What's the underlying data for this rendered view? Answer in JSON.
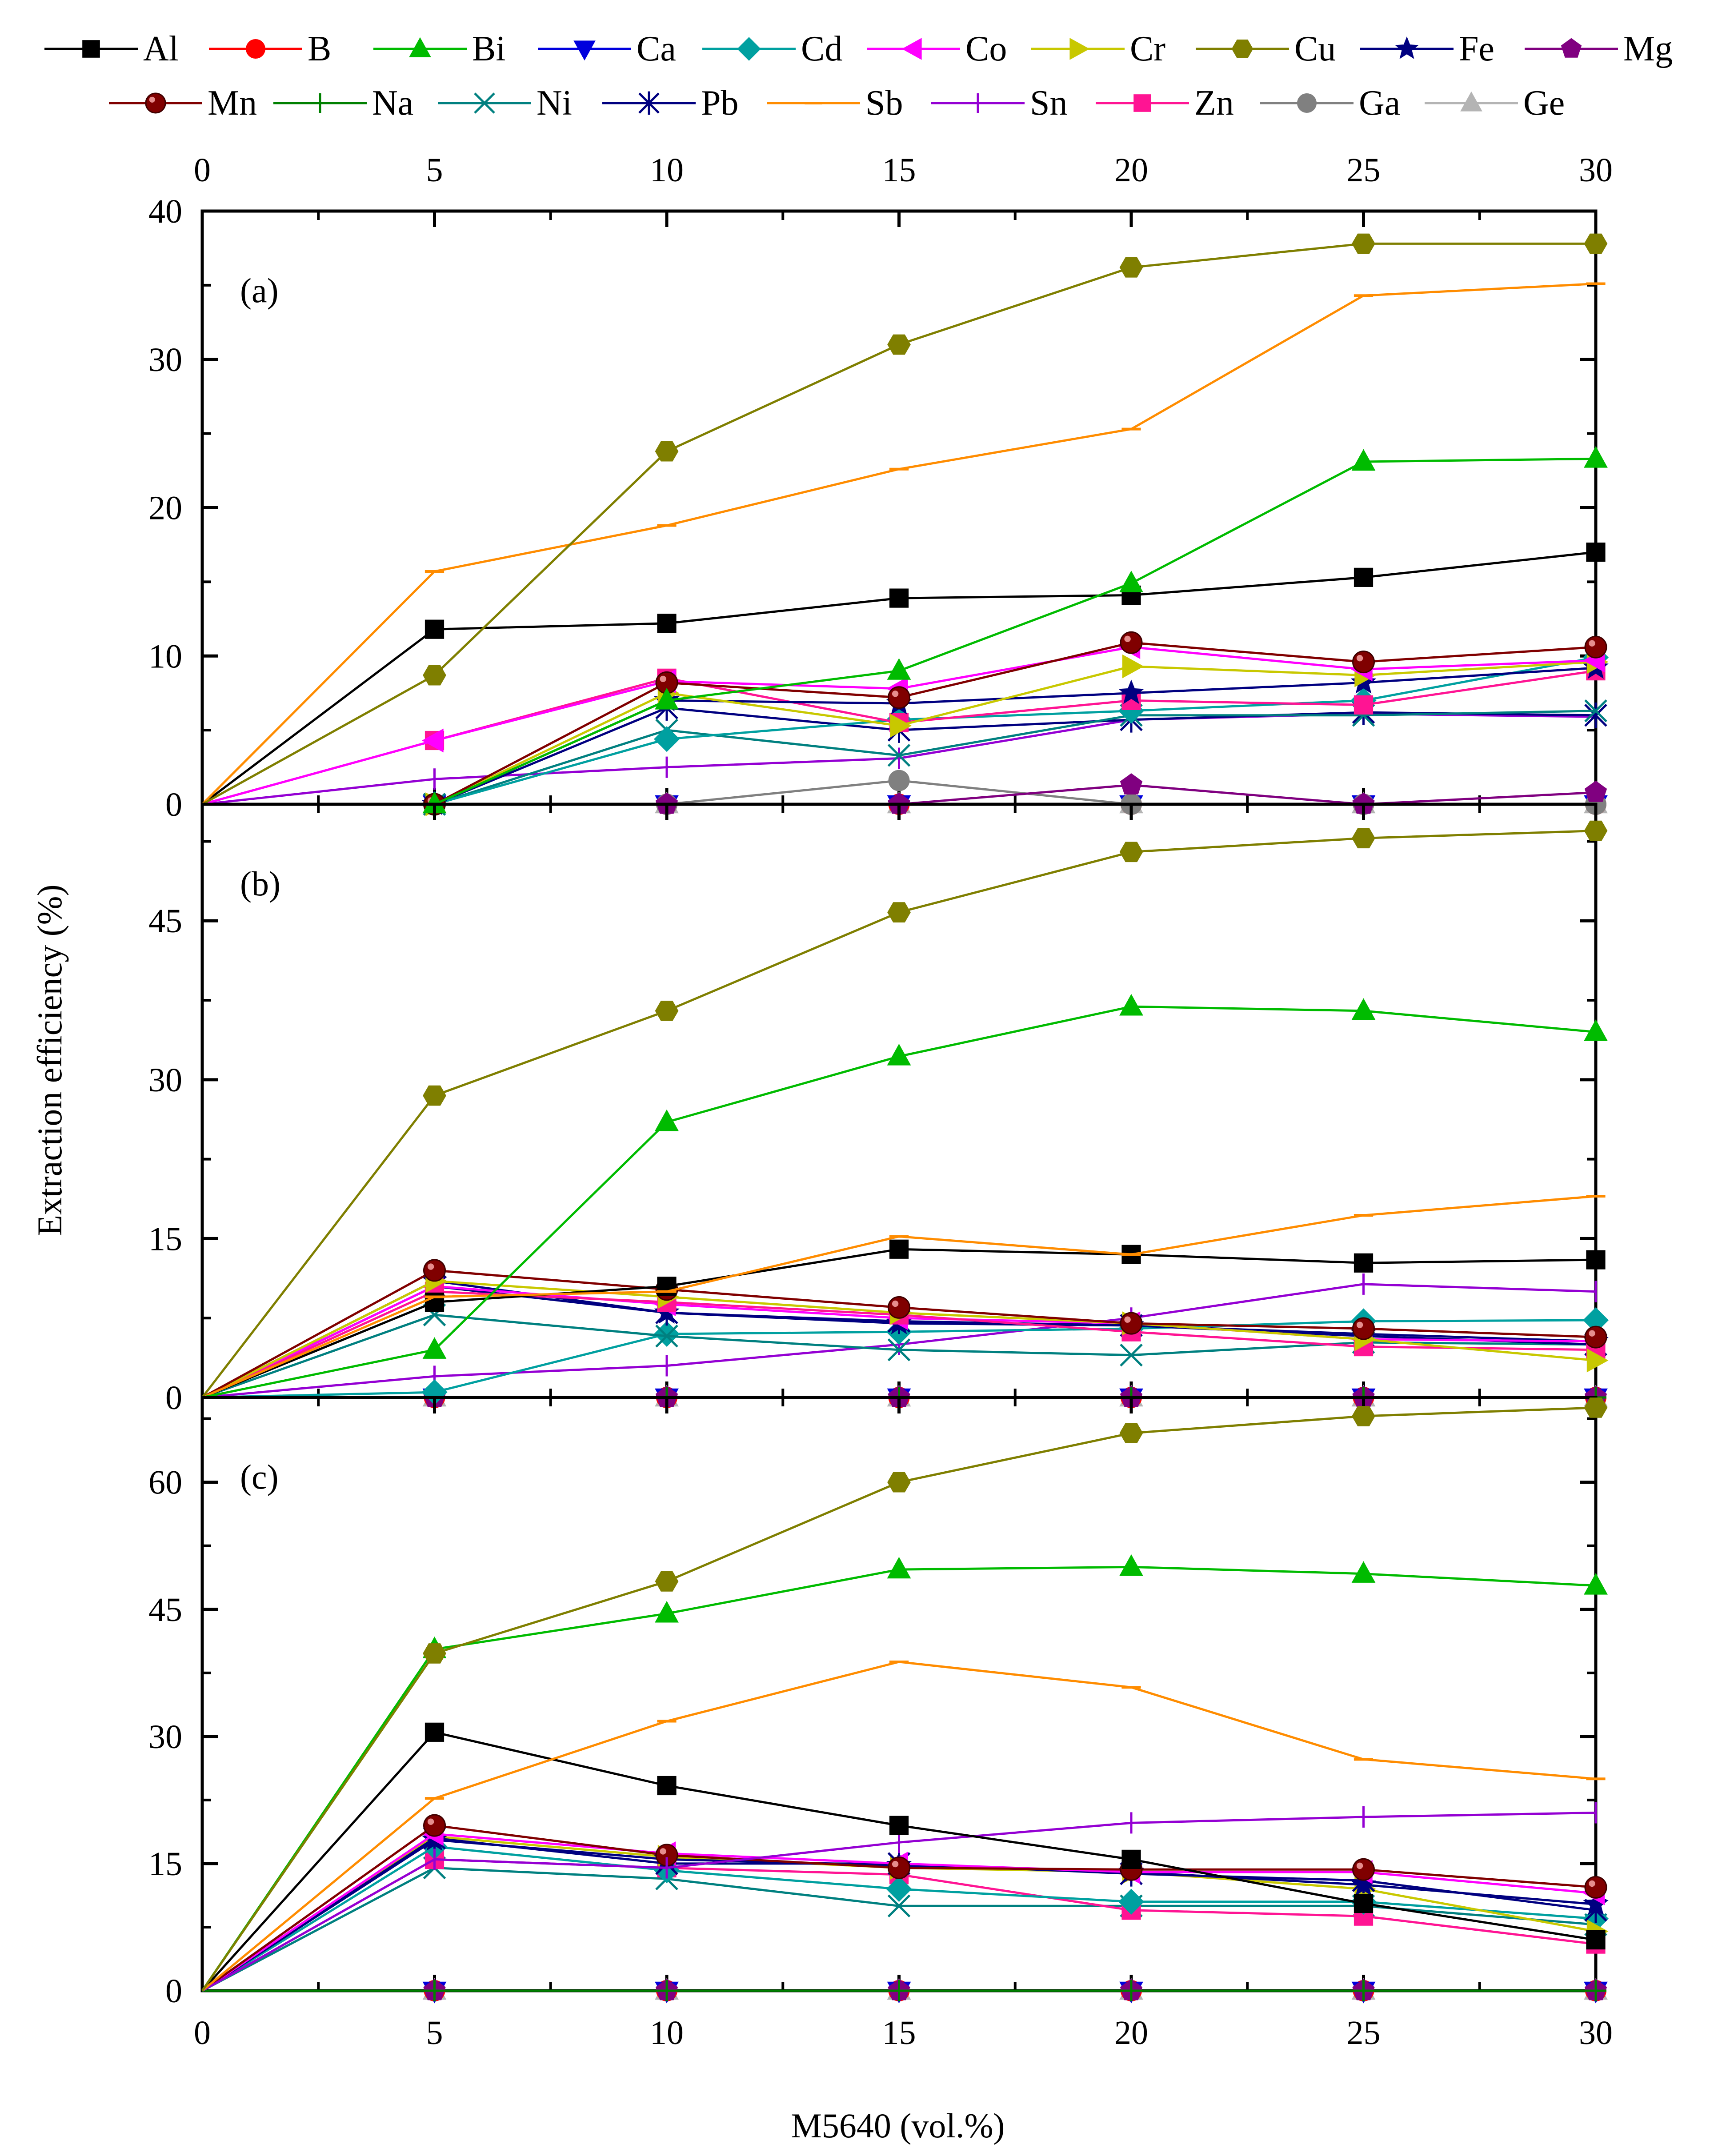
{
  "chart_data": {
    "type": "line",
    "xlabel": "M5640 (vol.%)",
    "ylabel": "Extraction efficiency (%)",
    "x": [
      0,
      5,
      10,
      15,
      20,
      25,
      30
    ],
    "xlim": [
      0,
      30
    ],
    "x_ticks": [
      0,
      5,
      10,
      15,
      20,
      25,
      30
    ],
    "legend": [
      {
        "name": "Al",
        "color": "#000000",
        "marker": "square"
      },
      {
        "name": "B",
        "color": "#ff0000",
        "marker": "circle"
      },
      {
        "name": "Bi",
        "color": "#00bb00",
        "marker": "triangle-up"
      },
      {
        "name": "Ca",
        "color": "#0000dd",
        "marker": "triangle-down"
      },
      {
        "name": "Cd",
        "color": "#00a0a0",
        "marker": "diamond"
      },
      {
        "name": "Co",
        "color": "#ff00ff",
        "marker": "triangle-left"
      },
      {
        "name": "Cr",
        "color": "#c8c800",
        "marker": "triangle-right"
      },
      {
        "name": "Cu",
        "color": "#7f7f00",
        "marker": "hexagon"
      },
      {
        "name": "Fe",
        "color": "#000080",
        "marker": "star"
      },
      {
        "name": "Mg",
        "color": "#800080",
        "marker": "pentagon"
      },
      {
        "name": "Mn",
        "color": "#800000",
        "marker": "sphere"
      },
      {
        "name": "Na",
        "color": "#008000",
        "marker": "plus"
      },
      {
        "name": "Ni",
        "color": "#008080",
        "marker": "x"
      },
      {
        "name": "Pb",
        "color": "#000080",
        "marker": "asterisk"
      },
      {
        "name": "Sb",
        "color": "#ff8c00",
        "marker": "dash"
      },
      {
        "name": "Sn",
        "color": "#9400d3",
        "marker": "vbar"
      },
      {
        "name": "Zn",
        "color": "#ff1493",
        "marker": "square"
      },
      {
        "name": "Ga",
        "color": "#808080",
        "marker": "circle"
      },
      {
        "name": "Ge",
        "color": "#b4b4b4",
        "marker": "triangle-up"
      }
    ],
    "panels": [
      {
        "label": "(a)",
        "ylim": [
          0,
          40
        ],
        "y_ticks": [
          0,
          10,
          20,
          30,
          40
        ],
        "series": [
          {
            "name": "Cu",
            "values": [
              0,
              8.7,
              23.8,
              31.0,
              36.2,
              37.8,
              37.8
            ]
          },
          {
            "name": "Sb",
            "values": [
              0,
              15.7,
              18.8,
              22.6,
              25.3,
              34.3,
              35.1
            ]
          },
          {
            "name": "Bi",
            "values": [
              0,
              0,
              7.0,
              9.0,
              14.9,
              23.1,
              23.3
            ]
          },
          {
            "name": "Al",
            "values": [
              0,
              11.8,
              12.2,
              13.9,
              14.1,
              15.3,
              17.0
            ]
          },
          {
            "name": "Mn",
            "values": [
              0,
              0,
              8.2,
              7.2,
              10.9,
              9.6,
              10.6
            ]
          },
          {
            "name": "Co",
            "values": [
              0,
              4.3,
              8.3,
              7.8,
              10.6,
              9.1,
              9.7
            ]
          },
          {
            "name": "Cr",
            "values": [
              0,
              0,
              7.5,
              5.3,
              9.3,
              8.7,
              9.6
            ]
          },
          {
            "name": "Fe",
            "values": [
              0,
              0,
              7.0,
              6.8,
              7.5,
              8.2,
              9.2
            ]
          },
          {
            "name": "Zn",
            "values": [
              0,
              4.3,
              8.5,
              5.5,
              7.0,
              6.7,
              9.0
            ]
          },
          {
            "name": "Cd",
            "values": [
              0,
              0,
              4.4,
              5.7,
              6.3,
              7.0,
              9.9
            ]
          },
          {
            "name": "Ni",
            "values": [
              0,
              0,
              5.0,
              3.3,
              6.0,
              6.0,
              6.3
            ]
          },
          {
            "name": "Pb",
            "values": [
              0,
              0,
              6.5,
              5.0,
              5.7,
              6.2,
              6.0
            ]
          },
          {
            "name": "Sn",
            "values": [
              0,
              1.7,
              2.5,
              3.1,
              5.7,
              6.1,
              5.9
            ]
          },
          {
            "name": "Mg",
            "values": [
              0,
              0,
              0,
              0,
              1.3,
              0,
              0.8
            ]
          },
          {
            "name": "Ga",
            "values": [
              0,
              0,
              0,
              1.6,
              0,
              0,
              0
            ]
          },
          {
            "name": "Na",
            "values": [
              0,
              0,
              0,
              0,
              0,
              0,
              0
            ]
          },
          {
            "name": "Ca",
            "values": [
              0,
              0,
              0,
              0,
              0,
              0,
              0
            ]
          },
          {
            "name": "B",
            "values": [
              0,
              0,
              0,
              0,
              0,
              0,
              0
            ]
          },
          {
            "name": "Ge",
            "values": [
              0,
              0,
              0,
              0,
              0,
              0,
              0
            ]
          }
        ]
      },
      {
        "label": "(b)",
        "ylim": [
          0,
          56
        ],
        "y_ticks": [
          0,
          15,
          30,
          45
        ],
        "series": [
          {
            "name": "Cu",
            "values": [
              0,
              28.5,
              36.5,
              45.8,
              51.5,
              52.8,
              53.5
            ]
          },
          {
            "name": "Bi",
            "values": [
              0,
              4.5,
              26.0,
              32.2,
              36.9,
              36.5,
              34.5
            ]
          },
          {
            "name": "Sb",
            "values": [
              0,
              9.5,
              10.0,
              15.2,
              13.5,
              17.2,
              19.0
            ]
          },
          {
            "name": "Al",
            "values": [
              0,
              9.0,
              10.5,
              14.0,
              13.5,
              12.7,
              13.0
            ]
          },
          {
            "name": "Mn",
            "values": [
              0,
              12.0,
              10.2,
              8.5,
              7.0,
              6.5,
              5.7
            ]
          },
          {
            "name": "Cr",
            "values": [
              0,
              11.0,
              9.5,
              8.0,
              7.0,
              5.5,
              3.5
            ]
          },
          {
            "name": "Zn",
            "values": [
              0,
              10.0,
              9.0,
              7.8,
              6.2,
              4.8,
              4.5
            ]
          },
          {
            "name": "Co",
            "values": [
              0,
              10.5,
              8.8,
              7.5,
              7.0,
              5.5,
              5.3
            ]
          },
          {
            "name": "Fe",
            "values": [
              0,
              11.0,
              8.0,
              7.0,
              6.8,
              6.0,
              5.3
            ]
          },
          {
            "name": "Pb",
            "values": [
              0,
              10.5,
              8.0,
              7.2,
              6.8,
              5.8,
              5.0
            ]
          },
          {
            "name": "Ni",
            "values": [
              0,
              7.8,
              5.8,
              4.5,
              4.0,
              5.2,
              5.0
            ]
          },
          {
            "name": "Cd",
            "values": [
              0,
              0.5,
              6.0,
              6.2,
              6.5,
              7.2,
              7.3
            ]
          },
          {
            "name": "Sn",
            "values": [
              0,
              2.0,
              3.0,
              5.0,
              7.5,
              10.7,
              10.0
            ]
          },
          {
            "name": "Na",
            "values": [
              0,
              0,
              0,
              0,
              0,
              0,
              0
            ]
          },
          {
            "name": "Mg",
            "values": [
              0,
              0,
              0,
              0,
              0,
              0,
              0
            ]
          },
          {
            "name": "Ca",
            "values": [
              0,
              0,
              0,
              0,
              0,
              0,
              0
            ]
          },
          {
            "name": "B",
            "values": [
              0,
              0,
              0,
              0,
              0,
              0,
              0
            ]
          },
          {
            "name": "Ga",
            "values": [
              0,
              0,
              0,
              0,
              0,
              0,
              0
            ]
          },
          {
            "name": "Ge",
            "values": [
              0,
              0,
              0,
              0,
              0,
              0,
              0
            ]
          }
        ]
      },
      {
        "label": "(c)",
        "ylim": [
          0,
          70
        ],
        "y_ticks": [
          0,
          15,
          30,
          45,
          60
        ],
        "series": [
          {
            "name": "Cu",
            "values": [
              0,
              39.8,
              48.3,
              60.0,
              65.8,
              67.8,
              68.8
            ]
          },
          {
            "name": "Bi",
            "values": [
              0,
              40.3,
              44.5,
              49.7,
              50.0,
              49.2,
              47.8
            ]
          },
          {
            "name": "Sb",
            "values": [
              0,
              22.7,
              31.8,
              38.8,
              35.8,
              27.3,
              25.0
            ]
          },
          {
            "name": "Al",
            "values": [
              0,
              30.5,
              24.2,
              19.5,
              15.5,
              10.3,
              6.0
            ]
          },
          {
            "name": "Sn",
            "values": [
              0,
              15.5,
              14.5,
              17.5,
              19.8,
              20.5,
              21.0
            ]
          },
          {
            "name": "Mn",
            "values": [
              0,
              19.5,
              16.0,
              14.5,
              14.3,
              14.3,
              12.2
            ]
          },
          {
            "name": "Co",
            "values": [
              0,
              18.5,
              16.2,
              15.0,
              14.0,
              14.0,
              11.5
            ]
          },
          {
            "name": "Fe",
            "values": [
              0,
              17.8,
              15.5,
              14.8,
              14.0,
              12.5,
              10.2
            ]
          },
          {
            "name": "Pb",
            "values": [
              0,
              18.0,
              15.0,
              15.0,
              13.8,
              13.0,
              9.5
            ]
          },
          {
            "name": "Cr",
            "values": [
              0,
              18.2,
              15.8,
              14.5,
              14.0,
              12.0,
              7.0
            ]
          },
          {
            "name": "Cd",
            "values": [
              0,
              17.0,
              14.2,
              12.0,
              10.5,
              10.5,
              8.5
            ]
          },
          {
            "name": "Zn",
            "values": [
              0,
              15.5,
              14.5,
              13.7,
              9.5,
              8.8,
              5.5
            ]
          },
          {
            "name": "Ni",
            "values": [
              0,
              14.5,
              13.2,
              10.0,
              10.0,
              10.0,
              7.8
            ]
          },
          {
            "name": "Na",
            "values": [
              0,
              0,
              0,
              0,
              0,
              0,
              0
            ]
          },
          {
            "name": "Mg",
            "values": [
              0,
              0,
              0,
              0,
              0,
              0,
              0
            ]
          },
          {
            "name": "Ca",
            "values": [
              0,
              0,
              0,
              0,
              0,
              0,
              0
            ]
          },
          {
            "name": "B",
            "values": [
              0,
              0,
              0,
              0,
              0,
              0,
              0
            ]
          },
          {
            "name": "Ga",
            "values": [
              0,
              0,
              0,
              0,
              0,
              0,
              0
            ]
          },
          {
            "name": "Ge",
            "values": [
              0,
              0,
              0,
              0,
              0,
              0,
              0
            ]
          }
        ]
      }
    ]
  }
}
